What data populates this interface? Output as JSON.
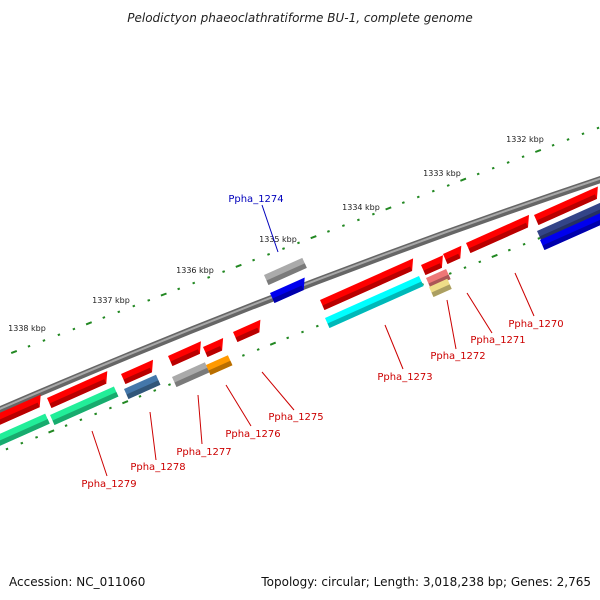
{
  "title": "Pelodictyon phaeoclathratiforme BU-1, complete genome",
  "footer": {
    "accession": "Accession: NC_011060",
    "summary": "Topology: circular; Length: 3,018,238 bp; Genes: 2,765"
  },
  "ruler_labels": [
    "1332 kbp",
    "1333 kbp",
    "1334 kbp",
    "1335 kbp",
    "1336 kbp",
    "1337 kbp",
    "1338 kbp"
  ],
  "gene_labels": [
    {
      "name": "Ppha_1270",
      "color": "#cc0000"
    },
    {
      "name": "Ppha_1271",
      "color": "#cc0000"
    },
    {
      "name": "Ppha_1272",
      "color": "#cc0000"
    },
    {
      "name": "Ppha_1273",
      "color": "#cc0000"
    },
    {
      "name": "Ppha_1274",
      "color": "#0000bb"
    },
    {
      "name": "Ppha_1275",
      "color": "#cc0000"
    },
    {
      "name": "Ppha_1276",
      "color": "#cc0000"
    },
    {
      "name": "Ppha_1277",
      "color": "#cc0000"
    },
    {
      "name": "Ppha_1278",
      "color": "#cc0000"
    },
    {
      "name": "Ppha_1279",
      "color": "#cc0000"
    }
  ],
  "colors": {
    "backbone": "#808080",
    "tick": "#228822",
    "gene_red": "#ff0000",
    "gene_cyan": "#00ffff",
    "gene_green": "#22ee99",
    "gene_blue": "#0000ee",
    "gene_grey": "#aaaaaa",
    "gene_orange": "#ff9900",
    "gene_steel": "#4477aa",
    "gene_navy": "#334488",
    "gene_pink": "#ee7777",
    "gene_yellow": "#eedd88"
  }
}
